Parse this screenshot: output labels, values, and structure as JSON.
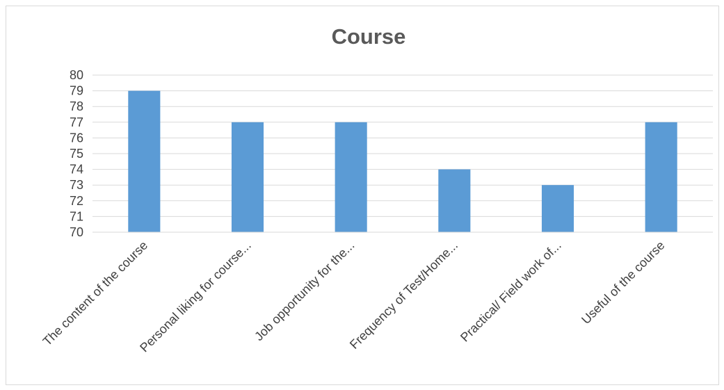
{
  "chart_data": {
    "type": "bar",
    "title": "Course",
    "categories": [
      "The content of the course",
      "Personal liking for course...",
      "Job opportunity for the...",
      "Frequency of Test/Home...",
      "Practical/ Field work of...",
      "Useful of the course"
    ],
    "values": [
      79,
      77,
      77,
      74,
      73,
      77
    ],
    "ylim": [
      70,
      80
    ],
    "yticks": [
      70,
      71,
      72,
      73,
      74,
      75,
      76,
      77,
      78,
      79,
      80
    ],
    "grid": true,
    "legend": "none",
    "bar_color": "#5b9bd5",
    "grid_color": "#d9d9d9"
  }
}
